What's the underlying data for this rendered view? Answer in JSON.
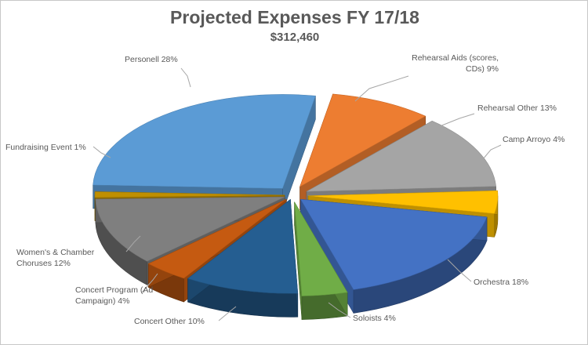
{
  "chart_data": {
    "type": "pie",
    "title": "Projected Expenses FY 17/18",
    "subtitle": "$312,460",
    "slices": [
      {
        "label_lines": [
          "Rehearsal Aids (scores,",
          "CDs) 9%"
        ],
        "category": "Rehearsal Aids (scores, CDs)",
        "value": 9,
        "color": "#ED7D31"
      },
      {
        "label_lines": [
          "Rehearsal Other 13%"
        ],
        "category": "Rehearsal Other",
        "value": 13,
        "color": "#A5A5A5"
      },
      {
        "label_lines": [
          "Camp Arroyo 4%"
        ],
        "category": "Camp Arroyo",
        "value": 4,
        "color": "#FFC000"
      },
      {
        "label_lines": [
          "Orchestra 18%"
        ],
        "category": "Orchestra",
        "value": 18,
        "color": "#4472C4"
      },
      {
        "label_lines": [
          "Soloists 4%"
        ],
        "category": "Soloists",
        "value": 4,
        "color": "#70AD47"
      },
      {
        "label_lines": [
          "Concert Other 10%"
        ],
        "category": "Concert Other",
        "value": 10,
        "color": "#255E91"
      },
      {
        "label_lines": [
          "Concert Program (Ad",
          "Campaign) 4%"
        ],
        "category": "Concert Program (Ad Campaign)",
        "value": 4,
        "color": "#C55A11"
      },
      {
        "label_lines": [
          "Women's & Chamber",
          "Choruses 12%"
        ],
        "category": "Women's & Chamber Choruses",
        "value": 12,
        "color": "#7F7F7F"
      },
      {
        "label_lines": [
          "Fundraising Event 1%"
        ],
        "category": "Fundraising Event",
        "value": 1,
        "color": "#BF8F00"
      },
      {
        "label_lines": [
          "Personell 28%"
        ],
        "category": "Personell",
        "value": 28,
        "color": "#5B9BD5"
      }
    ],
    "legend": "none"
  }
}
